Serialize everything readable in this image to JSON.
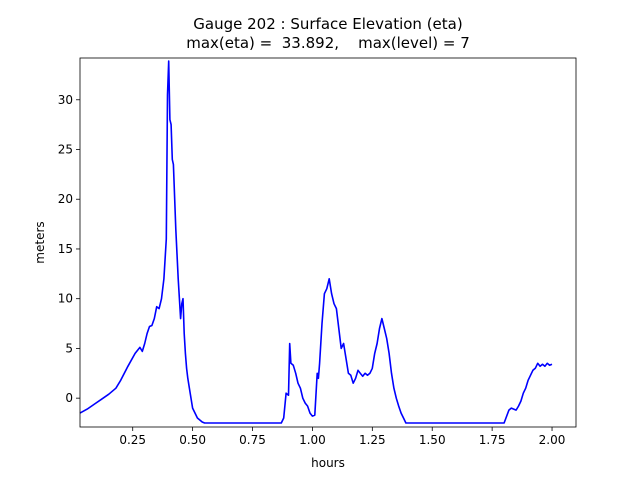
{
  "chart_data": {
    "type": "line",
    "title": "Gauge 202 : Surface Elevation (eta)",
    "subtitle": "max(eta) =  33.892,    max(level) = 7",
    "xlabel": "hours",
    "ylabel": "meters",
    "xlim": [
      0.03,
      2.1
    ],
    "ylim": [
      -2.9,
      34.2
    ],
    "xticks": [
      0.25,
      0.5,
      0.75,
      1.0,
      1.25,
      1.5,
      1.75,
      2.0
    ],
    "xtick_labels": [
      "0.25",
      "0.50",
      "0.75",
      "1.00",
      "1.25",
      "1.50",
      "1.75",
      "2.00"
    ],
    "yticks": [
      0,
      5,
      10,
      15,
      20,
      25,
      30
    ],
    "ytick_labels": [
      "0",
      "5",
      "10",
      "15",
      "20",
      "25",
      "30"
    ],
    "grid": false,
    "series": [
      {
        "color": "#0000ff",
        "x": [
          0.03,
          0.06,
          0.09,
          0.12,
          0.15,
          0.18,
          0.2,
          0.23,
          0.26,
          0.28,
          0.29,
          0.3,
          0.31,
          0.32,
          0.33,
          0.34,
          0.35,
          0.36,
          0.37,
          0.38,
          0.39,
          0.395,
          0.4,
          0.405,
          0.41,
          0.415,
          0.42,
          0.43,
          0.44,
          0.45,
          0.455,
          0.46,
          0.465,
          0.47,
          0.475,
          0.48,
          0.49,
          0.5,
          0.52,
          0.54,
          0.55,
          0.56,
          0.57,
          0.6,
          0.7,
          0.8,
          0.87,
          0.88,
          0.89,
          0.9,
          0.905,
          0.91,
          0.92,
          0.93,
          0.94,
          0.95,
          0.96,
          0.97,
          0.98,
          0.99,
          1.0,
          1.01,
          1.02,
          1.025,
          1.03,
          1.04,
          1.05,
          1.06,
          1.07,
          1.08,
          1.09,
          1.1,
          1.11,
          1.12,
          1.13,
          1.14,
          1.15,
          1.16,
          1.17,
          1.18,
          1.19,
          1.2,
          1.21,
          1.22,
          1.23,
          1.24,
          1.25,
          1.26,
          1.27,
          1.28,
          1.29,
          1.3,
          1.31,
          1.32,
          1.33,
          1.34,
          1.35,
          1.36,
          1.37,
          1.38,
          1.39,
          1.4,
          1.42,
          1.44,
          1.46,
          1.48,
          1.5,
          1.6,
          1.7,
          1.8,
          1.82,
          1.83,
          1.85,
          1.86,
          1.87,
          1.88,
          1.89,
          1.9,
          1.91,
          1.92,
          1.93,
          1.94,
          1.95,
          1.96,
          1.97,
          1.98,
          1.99,
          2.0
        ],
        "y": [
          -1.5,
          -1.1,
          -0.6,
          -0.1,
          0.4,
          1.0,
          1.8,
          3.2,
          4.5,
          5.1,
          4.7,
          5.5,
          6.5,
          7.2,
          7.3,
          8.0,
          9.2,
          9.0,
          10.0,
          12.0,
          16.0,
          30.5,
          33.9,
          28.0,
          27.5,
          24.0,
          23.5,
          17.0,
          12.0,
          8.0,
          9.5,
          10.0,
          6.5,
          4.5,
          3.0,
          2.0,
          0.5,
          -1.0,
          -2.0,
          -2.4,
          -2.5,
          -2.5,
          -2.5,
          -2.5,
          -2.5,
          -2.5,
          -2.5,
          -2.0,
          0.5,
          0.3,
          5.5,
          3.5,
          3.3,
          2.5,
          1.5,
          1.0,
          0.0,
          -0.5,
          -0.8,
          -1.5,
          -1.8,
          -1.7,
          2.5,
          2.0,
          3.5,
          7.5,
          10.5,
          11.0,
          12.0,
          10.5,
          9.5,
          9.0,
          7.0,
          5.0,
          5.5,
          4.0,
          2.5,
          2.3,
          1.5,
          2.0,
          2.8,
          2.5,
          2.2,
          2.5,
          2.3,
          2.5,
          3.0,
          4.5,
          5.5,
          7.0,
          8.0,
          7.0,
          6.0,
          4.5,
          2.5,
          1.0,
          0.0,
          -0.8,
          -1.5,
          -2.0,
          -2.5,
          -2.5,
          -2.5,
          -2.5,
          -2.5,
          -2.5,
          -2.5,
          -2.5,
          -2.5,
          -2.5,
          -1.2,
          -1.0,
          -1.2,
          -0.8,
          -0.3,
          0.5,
          1.0,
          1.8,
          2.3,
          2.8,
          3.0,
          3.5,
          3.2,
          3.4,
          3.2,
          3.5,
          3.3,
          3.4
        ]
      }
    ]
  }
}
